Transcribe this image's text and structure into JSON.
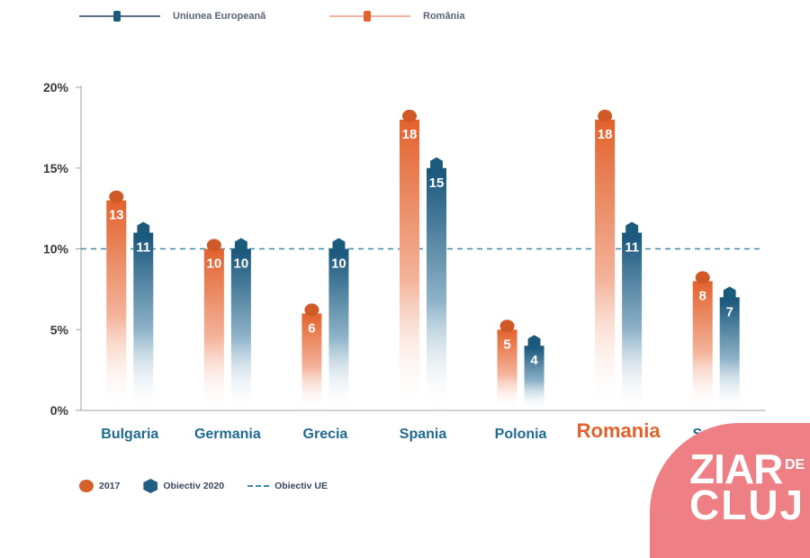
{
  "top_legend": {
    "eu_label": "Uniunea Europeană",
    "ro_label": "România"
  },
  "bottom_legend": {
    "y2017": "2017",
    "target2020": "Obiectiv 2020",
    "eu_target": "Obiectiv UE"
  },
  "colors": {
    "orange": "#e2622d",
    "blue": "#1c5a7c",
    "dashed": "#3b8aa8",
    "axis_text": "#3a3a3a",
    "category_text": "#1f6a93",
    "romania_label": "#e2622d"
  },
  "chart_data": {
    "type": "bar",
    "categories": [
      "Bulgaria",
      "Germania",
      "Grecia",
      "Spania",
      "Polonia",
      "Romania",
      "Suedia"
    ],
    "highlight_category": "Romania",
    "series": [
      {
        "name": "2017",
        "values": [
          13,
          10,
          6,
          18,
          5,
          18,
          8
        ],
        "labels": [
          "13",
          "10",
          "6",
          "18",
          "5",
          "18",
          "8"
        ]
      },
      {
        "name": "Obiectiv 2020",
        "values": [
          11,
          10,
          10,
          15,
          4,
          11,
          7
        ],
        "labels": [
          "11",
          "10",
          "10",
          "15",
          "4",
          "11",
          "7"
        ]
      }
    ],
    "y_ticks": [
      "0%",
      "5%",
      "10%",
      "15%",
      "20%"
    ],
    "ylim": [
      0,
      20
    ],
    "reference_line": {
      "label": "Obiectiv UE",
      "value": 10
    },
    "grid": false,
    "legend": "bottom-left"
  },
  "watermark": {
    "line1": "ZIAR",
    "small": "DE",
    "line2": "CLUJ"
  }
}
